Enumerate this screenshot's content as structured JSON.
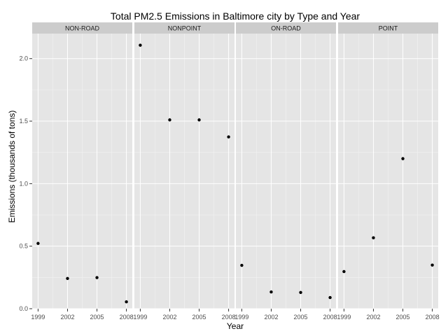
{
  "chart_data": {
    "type": "scatter",
    "title": "Total PM2.5 Emissions in Baltimore city by Type and Year",
    "xlabel": "Year",
    "ylabel": "Emissions (thousands of tons)",
    "x_ticks": [
      "1999",
      "2002",
      "2005",
      "2008"
    ],
    "y_ticks": [
      "0.0",
      "0.5",
      "1.0",
      "1.5",
      "2.0"
    ],
    "ylim": [
      0,
      2.2
    ],
    "grid": true,
    "colors": {
      "panel_background": "#e5e5e5",
      "strip_background": "#cccccc",
      "gridline": "#ffffff",
      "point": "#000000"
    },
    "panels": [
      {
        "name": "NON-ROAD",
        "x": [
          1999,
          2002,
          2005,
          2008
        ],
        "y": [
          0.522,
          0.242,
          0.249,
          0.055
        ]
      },
      {
        "name": "NONPOINT",
        "x": [
          1999,
          2002,
          2005,
          2008
        ],
        "y": [
          2.107,
          1.51,
          1.51,
          1.374
        ]
      },
      {
        "name": "ON-ROAD",
        "x": [
          1999,
          2002,
          2005,
          2008
        ],
        "y": [
          0.347,
          0.134,
          0.13,
          0.089
        ]
      },
      {
        "name": "POINT",
        "x": [
          1999,
          2002,
          2005,
          2008
        ],
        "y": [
          0.297,
          0.567,
          1.2,
          0.349
        ]
      }
    ]
  }
}
